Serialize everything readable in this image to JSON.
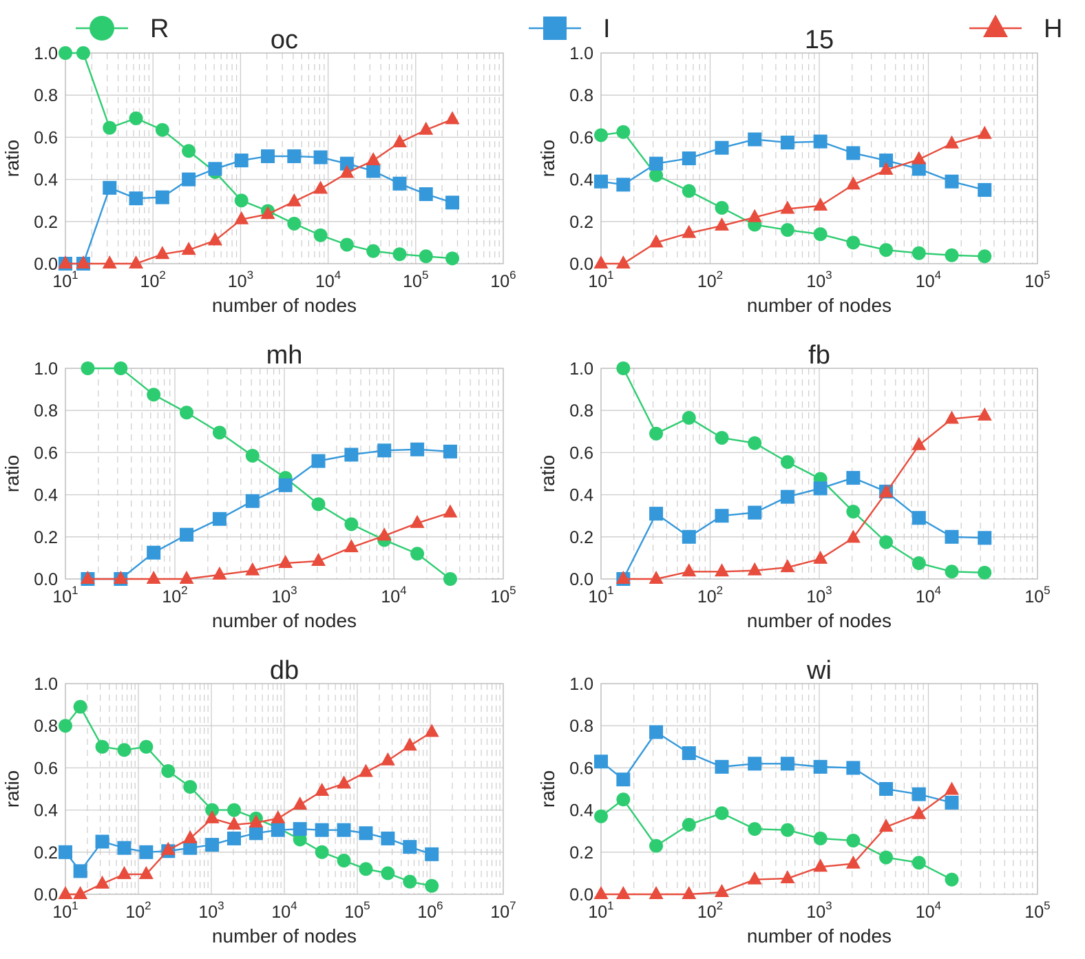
{
  "legend": {
    "placement": "top",
    "items": [
      {
        "name": "R",
        "color": "#2ecc71",
        "marker": "circle"
      },
      {
        "name": "I",
        "color": "#3498db",
        "marker": "square"
      },
      {
        "name": "H",
        "color": "#e74c3c",
        "marker": "triangle"
      }
    ]
  },
  "chart_data": [
    {
      "type": "line",
      "title": "oc",
      "xlabel": "number of nodes",
      "ylabel": "ratio",
      "xscale": "log",
      "xlim": [
        10,
        1000000
      ],
      "ylim": [
        0,
        1
      ],
      "xticks": [
        "10^1",
        "10^2",
        "10^3",
        "10^4",
        "10^5",
        "10^6"
      ],
      "yticks": [
        "0.0",
        "0.2",
        "0.4",
        "0.6",
        "0.8",
        "1.0"
      ],
      "grid": true,
      "x": [
        10,
        16,
        32,
        64,
        128,
        256,
        512,
        1024,
        2048,
        4096,
        8192,
        16384,
        32768,
        65536,
        131072,
        262144
      ],
      "series": [
        {
          "name": "R",
          "values": [
            1.0,
            1.0,
            0.645,
            0.69,
            0.635,
            0.535,
            0.435,
            0.3,
            0.25,
            0.19,
            0.135,
            0.09,
            0.06,
            0.045,
            0.035,
            0.025
          ]
        },
        {
          "name": "I",
          "values": [
            0.0,
            0.0,
            0.36,
            0.31,
            0.315,
            0.4,
            0.45,
            0.49,
            0.51,
            0.51,
            0.505,
            0.475,
            0.44,
            0.38,
            0.33,
            0.29
          ]
        },
        {
          "name": "H",
          "values": [
            0.0,
            0.0,
            0.0,
            0.0,
            0.045,
            0.065,
            0.11,
            0.21,
            0.235,
            0.295,
            0.355,
            0.43,
            0.49,
            0.575,
            0.635,
            0.685
          ]
        }
      ]
    },
    {
      "type": "line",
      "title": "15",
      "xlabel": "number of nodes",
      "ylabel": "ratio",
      "xscale": "log",
      "xlim": [
        10,
        100000
      ],
      "ylim": [
        0,
        1
      ],
      "xticks": [
        "10^1",
        "10^2",
        "10^3",
        "10^4",
        "10^5"
      ],
      "yticks": [
        "0.0",
        "0.2",
        "0.4",
        "0.6",
        "0.8",
        "1.0"
      ],
      "grid": true,
      "x": [
        10,
        16,
        32,
        64,
        128,
        256,
        512,
        1024,
        2048,
        4096,
        8192,
        16384,
        32768
      ],
      "series": [
        {
          "name": "R",
          "values": [
            0.61,
            0.625,
            0.42,
            0.345,
            0.265,
            0.185,
            0.16,
            0.14,
            0.1,
            0.065,
            0.05,
            0.04,
            0.035
          ]
        },
        {
          "name": "I",
          "values": [
            0.39,
            0.375,
            0.475,
            0.5,
            0.55,
            0.59,
            0.575,
            0.58,
            0.525,
            0.49,
            0.45,
            0.39,
            0.35
          ]
        },
        {
          "name": "H",
          "values": [
            0.0,
            0.0,
            0.1,
            0.145,
            0.18,
            0.22,
            0.26,
            0.275,
            0.375,
            0.445,
            0.495,
            0.57,
            0.615
          ]
        }
      ]
    },
    {
      "type": "line",
      "title": "mh",
      "xlabel": "number of nodes",
      "ylabel": "ratio",
      "xscale": "log",
      "xlim": [
        10,
        100000
      ],
      "ylim": [
        0,
        1
      ],
      "xticks": [
        "10^1",
        "10^2",
        "10^3",
        "10^4",
        "10^5"
      ],
      "yticks": [
        "0.0",
        "0.2",
        "0.4",
        "0.6",
        "0.8",
        "1.0"
      ],
      "grid": true,
      "x": [
        16,
        32,
        64,
        128,
        256,
        512,
        1024,
        2048,
        4096,
        8192,
        16384,
        32768
      ],
      "series": [
        {
          "name": "R",
          "values": [
            1.0,
            1.0,
            0.875,
            0.79,
            0.695,
            0.585,
            0.48,
            0.355,
            0.26,
            0.185,
            0.12,
            0.0
          ]
        },
        {
          "name": "I",
          "values": [
            0.0,
            0.0,
            0.125,
            0.21,
            0.285,
            0.37,
            0.445,
            0.56,
            0.59,
            0.61,
            0.615,
            0.605
          ]
        },
        {
          "name": "H",
          "values": [
            0.0,
            0.0,
            0.0,
            0.0,
            0.02,
            0.04,
            0.075,
            0.085,
            0.15,
            0.205,
            0.265,
            0.315
          ]
        }
      ]
    },
    {
      "type": "line",
      "title": "fb",
      "xlabel": "number of nodes",
      "ylabel": "ratio",
      "xscale": "log",
      "xlim": [
        10,
        100000
      ],
      "ylim": [
        0,
        1
      ],
      "xticks": [
        "10^1",
        "10^2",
        "10^3",
        "10^4",
        "10^5"
      ],
      "yticks": [
        "0.0",
        "0.2",
        "0.4",
        "0.6",
        "0.8",
        "1.0"
      ],
      "grid": true,
      "x": [
        16,
        32,
        64,
        128,
        256,
        512,
        1024,
        2048,
        4096,
        8192,
        16384,
        32768
      ],
      "series": [
        {
          "name": "R",
          "values": [
            1.0,
            0.69,
            0.765,
            0.67,
            0.645,
            0.555,
            0.475,
            0.32,
            0.175,
            0.075,
            0.035,
            0.03
          ]
        },
        {
          "name": "I",
          "values": [
            0.0,
            0.31,
            0.2,
            0.3,
            0.315,
            0.39,
            0.43,
            0.48,
            0.415,
            0.29,
            0.2,
            0.195
          ]
        },
        {
          "name": "H",
          "values": [
            0.0,
            0.0,
            0.035,
            0.035,
            0.04,
            0.055,
            0.095,
            0.195,
            0.41,
            0.635,
            0.76,
            0.775
          ]
        }
      ]
    },
    {
      "type": "line",
      "title": "db",
      "xlabel": "number of nodes",
      "ylabel": "ratio",
      "xscale": "log",
      "xlim": [
        10,
        10000000
      ],
      "ylim": [
        0,
        1
      ],
      "xticks": [
        "10^1",
        "10^2",
        "10^3",
        "10^4",
        "10^5",
        "10^6",
        "10^7"
      ],
      "yticks": [
        "0.0",
        "0.2",
        "0.4",
        "0.6",
        "0.8",
        "1.0"
      ],
      "grid": true,
      "x": [
        10,
        16,
        32,
        64,
        128,
        256,
        512,
        1024,
        2048,
        4096,
        8192,
        16384,
        32768,
        65536,
        131072,
        262144,
        524288,
        1048576
      ],
      "series": [
        {
          "name": "R",
          "values": [
            0.8,
            0.89,
            0.7,
            0.685,
            0.7,
            0.585,
            0.51,
            0.4,
            0.4,
            0.36,
            0.315,
            0.26,
            0.2,
            0.16,
            0.12,
            0.1,
            0.06,
            0.04
          ]
        },
        {
          "name": "I",
          "values": [
            0.2,
            0.11,
            0.25,
            0.22,
            0.2,
            0.205,
            0.22,
            0.235,
            0.265,
            0.29,
            0.305,
            0.31,
            0.305,
            0.305,
            0.29,
            0.265,
            0.225,
            0.19
          ]
        },
        {
          "name": "H",
          "values": [
            0.0,
            0.0,
            0.05,
            0.095,
            0.095,
            0.21,
            0.265,
            0.36,
            0.33,
            0.34,
            0.36,
            0.425,
            0.49,
            0.525,
            0.58,
            0.635,
            0.705,
            0.77
          ]
        }
      ]
    },
    {
      "type": "line",
      "title": "wi",
      "xlabel": "number of nodes",
      "ylabel": "ratio",
      "xscale": "log",
      "xlim": [
        10,
        100000
      ],
      "ylim": [
        0,
        1
      ],
      "xticks": [
        "10^1",
        "10^2",
        "10^3",
        "10^4",
        "10^5"
      ],
      "yticks": [
        "0.0",
        "0.2",
        "0.4",
        "0.6",
        "0.8",
        "1.0"
      ],
      "grid": true,
      "x": [
        10,
        16,
        32,
        64,
        128,
        256,
        512,
        1024,
        2048,
        4096,
        8192,
        16384
      ],
      "series": [
        {
          "name": "R",
          "values": [
            0.37,
            0.45,
            0.23,
            0.33,
            0.385,
            0.31,
            0.305,
            0.265,
            0.255,
            0.175,
            0.15,
            0.07
          ]
        },
        {
          "name": "I",
          "values": [
            0.63,
            0.545,
            0.77,
            0.67,
            0.605,
            0.62,
            0.62,
            0.605,
            0.6,
            0.5,
            0.475,
            0.435
          ]
        },
        {
          "name": "H",
          "values": [
            0.0,
            0.0,
            0.0,
            0.0,
            0.01,
            0.07,
            0.075,
            0.13,
            0.145,
            0.32,
            0.38,
            0.495
          ]
        }
      ]
    }
  ]
}
